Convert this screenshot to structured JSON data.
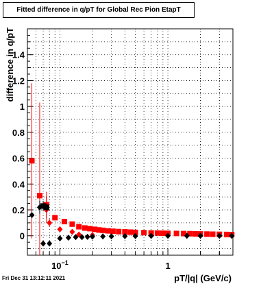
{
  "title": "Fitted difference in q/pT for Global Rec Pion EtapT",
  "timestamp": "Fri Dec 31 13:12:11 2021",
  "chart_data": {
    "type": "scatter",
    "title": "Fitted difference in q/pT for Global Rec Pion EtapT",
    "xlabel": "pT/|q| (GeV/c)",
    "ylabel": "difference in q/pT",
    "xscale": "log",
    "xlim": [
      0.05,
      4
    ],
    "ylim": [
      -0.15,
      1.6
    ],
    "xticks_labels": [
      "10^-1",
      "1"
    ],
    "yticks": [
      0,
      0.2,
      0.4,
      0.6,
      0.8,
      1,
      1.2,
      1.4
    ],
    "grid": true,
    "colors": {
      "red": "#ff0000",
      "black": "#000000"
    },
    "series": [
      {
        "marker": "square",
        "color": "#ff0000",
        "points": [
          {
            "x": 0.055,
            "y": 0.58,
            "err": 0.6
          },
          {
            "x": 0.065,
            "y": 0.31,
            "err": 0.72
          },
          {
            "x": 0.075,
            "y": 0.24,
            "err": 0.1
          },
          {
            "x": 0.09,
            "y": 0.14,
            "err": 0.02
          },
          {
            "x": 0.11,
            "y": 0.11,
            "err": 0.01
          },
          {
            "x": 0.13,
            "y": 0.09,
            "err": 0.01
          },
          {
            "x": 0.15,
            "y": 0.07
          },
          {
            "x": 0.17,
            "y": 0.06
          },
          {
            "x": 0.19,
            "y": 0.055
          },
          {
            "x": 0.21,
            "y": 0.05
          },
          {
            "x": 0.23,
            "y": 0.045
          },
          {
            "x": 0.25,
            "y": 0.042
          },
          {
            "x": 0.28,
            "y": 0.038
          },
          {
            "x": 0.31,
            "y": 0.035
          },
          {
            "x": 0.35,
            "y": 0.032
          },
          {
            "x": 0.4,
            "y": 0.03
          },
          {
            "x": 0.45,
            "y": 0.028
          },
          {
            "x": 0.5,
            "y": 0.026
          },
          {
            "x": 0.6,
            "y": 0.024
          },
          {
            "x": 0.7,
            "y": 0.022
          },
          {
            "x": 0.8,
            "y": 0.021
          },
          {
            "x": 0.9,
            "y": 0.02
          },
          {
            "x": 1.0,
            "y": 0.019
          },
          {
            "x": 1.2,
            "y": 0.018
          },
          {
            "x": 1.4,
            "y": 0.017
          },
          {
            "x": 1.6,
            "y": 0.016
          },
          {
            "x": 1.8,
            "y": 0.015
          },
          {
            "x": 2.0,
            "y": 0.014
          },
          {
            "x": 2.3,
            "y": 0.013
          },
          {
            "x": 2.6,
            "y": 0.012
          },
          {
            "x": 3.0,
            "y": 0.011
          },
          {
            "x": 3.5,
            "y": 0.01
          },
          {
            "x": 3.9,
            "y": 0.009
          }
        ]
      },
      {
        "marker": "diamond",
        "color": "#ff0000",
        "points": [
          {
            "x": 0.075,
            "y": 0.2,
            "err": 0.1
          },
          {
            "x": 0.08,
            "y": 0.1,
            "err": 0.03
          },
          {
            "x": 0.1,
            "y": 0.05
          },
          {
            "x": 0.13,
            "y": 0.03
          },
          {
            "x": 0.15,
            "y": 0.01
          },
          {
            "x": 0.2,
            "y": 0.005
          }
        ]
      },
      {
        "marker": "diamond",
        "color": "#000000",
        "points": [
          {
            "x": 0.055,
            "y": 0.16,
            "err": 0.02
          },
          {
            "x": 0.065,
            "y": 0.22,
            "err": 0.05
          },
          {
            "x": 0.07,
            "y": -0.06,
            "err": 0.02
          },
          {
            "x": 0.08,
            "y": -0.06,
            "err": 0.02
          },
          {
            "x": 0.1,
            "y": -0.02
          },
          {
            "x": 0.12,
            "y": -0.015
          },
          {
            "x": 0.14,
            "y": -0.01
          },
          {
            "x": 0.16,
            "y": -0.01
          },
          {
            "x": 0.18,
            "y": -0.008
          },
          {
            "x": 0.2,
            "y": -0.006
          },
          {
            "x": 0.25,
            "y": -0.005
          },
          {
            "x": 0.3,
            "y": -0.004
          },
          {
            "x": 0.4,
            "y": -0.003
          },
          {
            "x": 0.5,
            "y": -0.002
          },
          {
            "x": 0.7,
            "y": -0.001
          },
          {
            "x": 1.0,
            "y": 0
          },
          {
            "x": 1.5,
            "y": 0
          },
          {
            "x": 2.0,
            "y": 0
          },
          {
            "x": 3.0,
            "y": 0
          },
          {
            "x": 3.9,
            "y": 0
          }
        ]
      },
      {
        "marker": "square",
        "color": "#000000",
        "points": [
          {
            "x": 0.07,
            "y": 0.23,
            "err": 0.04
          },
          {
            "x": 0.075,
            "y": 0.22,
            "err": 0.03
          }
        ]
      }
    ]
  }
}
